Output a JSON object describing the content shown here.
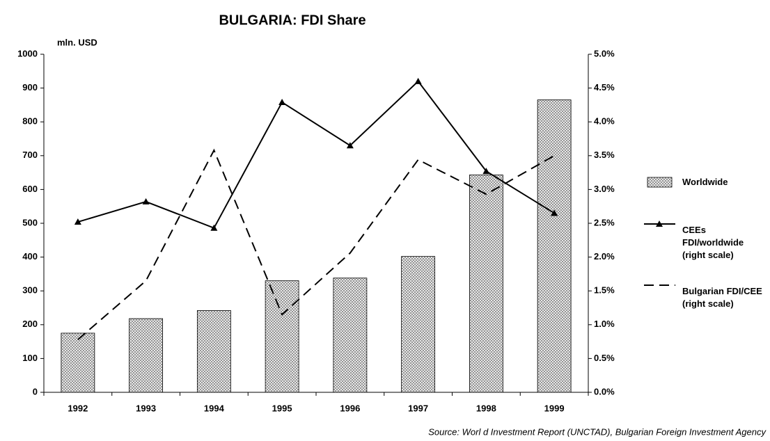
{
  "chart_data": {
    "type": "bar",
    "title": "BULGARIA: FDI Share",
    "y_label": "mln. USD",
    "source": "Source:  Worl d Investment Report (UNCTAD), Bulgarian Foreign Investment Agency",
    "categories": [
      "1992",
      "1993",
      "1994",
      "1995",
      "1996",
      "1997",
      "1998",
      "1999"
    ],
    "series": [
      {
        "name": "Worldwide",
        "type": "bar",
        "color": "#7f7f7f",
        "values": [
          175,
          218,
          242,
          330,
          338,
          402,
          643,
          865
        ]
      },
      {
        "name": "CEEs FDI/worldwide (right scale)",
        "type": "line",
        "axis": "y2",
        "color": "#000000",
        "marker": "triangle",
        "dashed": false,
        "values": [
          2.52,
          2.82,
          2.43,
          4.29,
          3.65,
          4.6,
          3.27,
          2.65
        ]
      },
      {
        "name": "Bulgarian FDI/CEE (right scale)",
        "type": "line",
        "axis": "y2",
        "color": "#000000",
        "dashed": true,
        "values": [
          0.78,
          1.65,
          3.58,
          1.15,
          2.06,
          3.44,
          2.93,
          3.5
        ]
      }
    ],
    "ylim": [
      0,
      1000
    ],
    "yticks": [
      0,
      100,
      200,
      300,
      400,
      500,
      600,
      700,
      800,
      900,
      1000
    ],
    "y2lim": [
      0,
      5
    ],
    "y2ticks": [
      {
        "value": 0,
        "label": "0.0%"
      },
      {
        "value": 0.5,
        "label": "0.5%"
      },
      {
        "value": 1,
        "label": "1.0%"
      },
      {
        "value": 1.5,
        "label": "1.5%"
      },
      {
        "value": 2,
        "label": "2.0%"
      },
      {
        "value": 2.5,
        "label": "2.5%"
      },
      {
        "value": 3,
        "label": "3.0%"
      },
      {
        "value": 3.5,
        "label": "3.5%"
      },
      {
        "value": 4,
        "label": "4.0%"
      },
      {
        "value": 4.5,
        "label": "4.5%"
      },
      {
        "value": 5,
        "label": "5.0%"
      }
    ],
    "grid": false,
    "legend": "right"
  }
}
